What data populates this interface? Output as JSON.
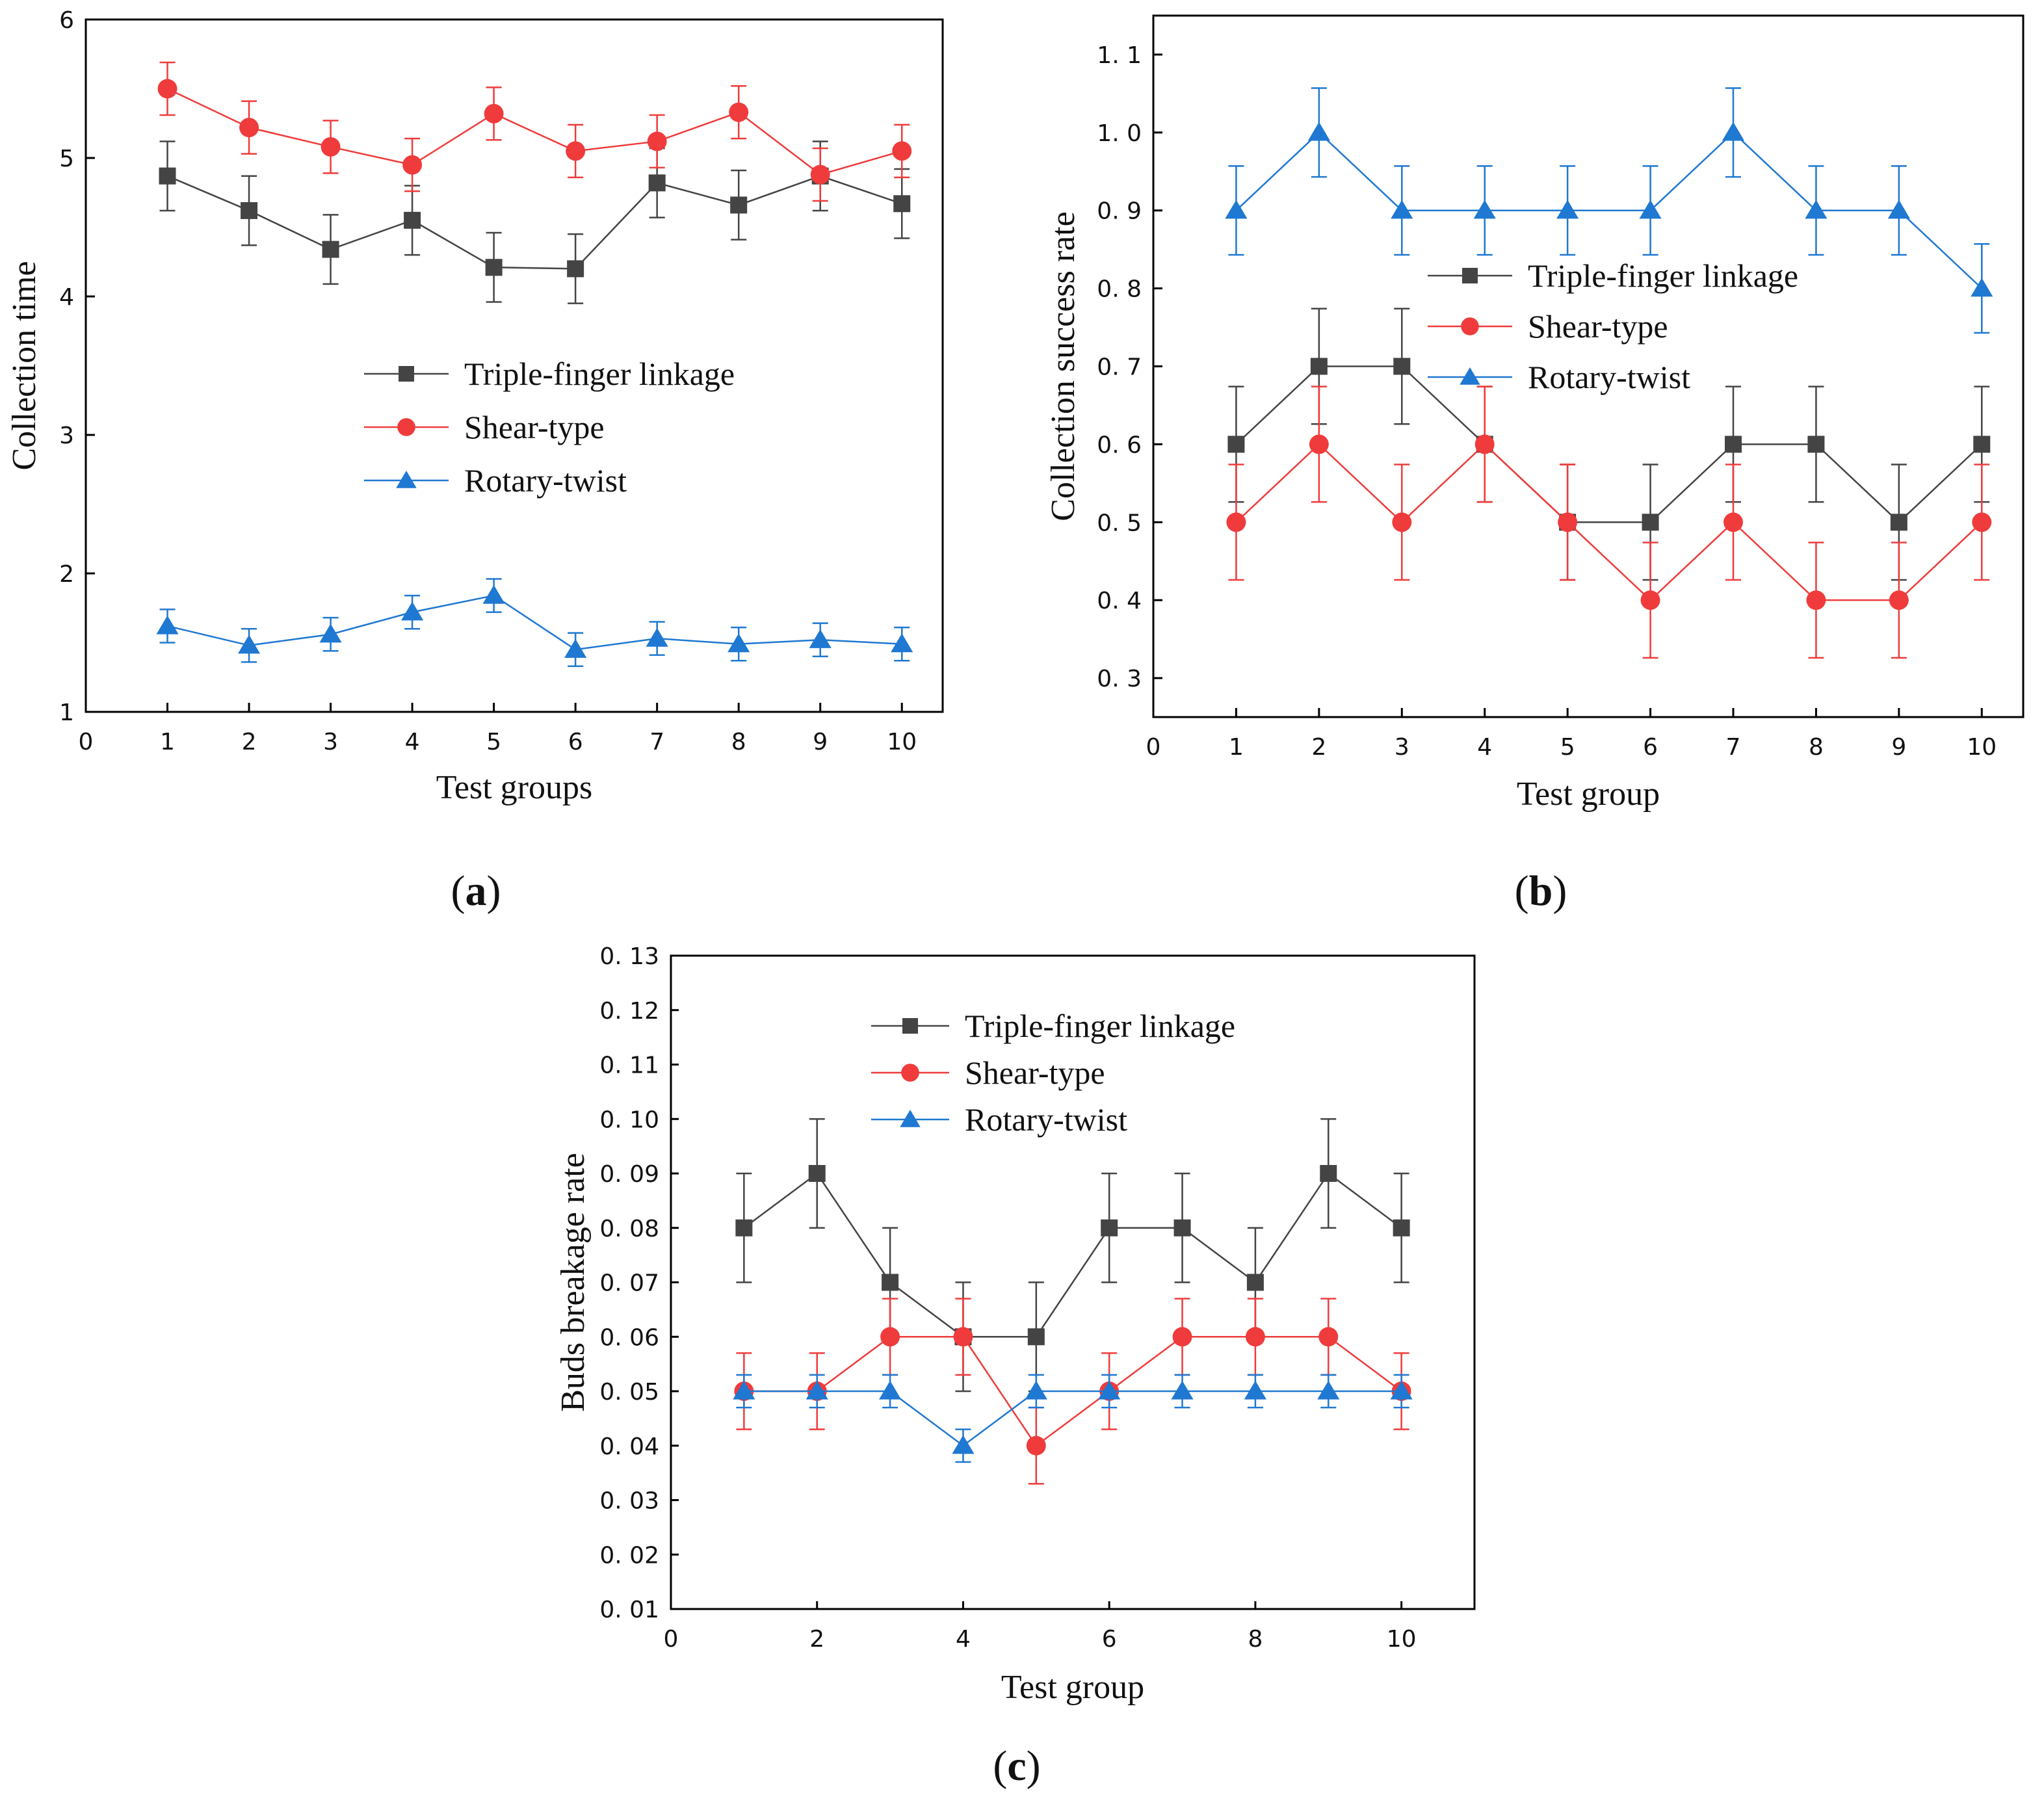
{
  "colors": {
    "triple": "#444444",
    "shear": "#ef3b3b",
    "rotary": "#1f78d1"
  },
  "chart_data": [
    {
      "id": "a",
      "type": "line",
      "panel_label": "a",
      "xlabel": "Test groups",
      "ylabel": "Collection time",
      "xlim": [
        0,
        10.5
      ],
      "ylim": [
        1,
        6
      ],
      "xticks": [
        0,
        1,
        2,
        3,
        4,
        5,
        6,
        7,
        8,
        9,
        10
      ],
      "yticks": [
        1,
        2,
        3,
        4,
        5,
        6
      ],
      "ytick_labels": [
        "1",
        "2",
        "3",
        "4",
        "5",
        "6"
      ],
      "legend_position": "center",
      "grid": false,
      "x": [
        1,
        2,
        3,
        4,
        5,
        6,
        7,
        8,
        9,
        10
      ],
      "series": [
        {
          "name": "Triple-finger linkage",
          "key": "triple",
          "marker": "square",
          "values": [
            4.87,
            4.62,
            4.34,
            4.55,
            4.21,
            4.2,
            4.82,
            4.66,
            4.87,
            4.67
          ],
          "error": 0.25
        },
        {
          "name": "Shear-type",
          "key": "shear",
          "marker": "circle",
          "values": [
            5.5,
            5.22,
            5.08,
            4.95,
            5.32,
            5.05,
            5.12,
            5.33,
            4.88,
            5.05
          ],
          "error": 0.19
        },
        {
          "name": "Rotary-twist",
          "key": "rotary",
          "marker": "triangle",
          "values": [
            1.62,
            1.48,
            1.56,
            1.72,
            1.84,
            1.45,
            1.53,
            1.49,
            1.52,
            1.49
          ],
          "error": 0.12
        }
      ]
    },
    {
      "id": "b",
      "type": "line",
      "panel_label": "b",
      "xlabel": "Test group",
      "ylabel": "Collection success rate",
      "xlim": [
        0,
        10.5
      ],
      "ylim": [
        0.25,
        1.15
      ],
      "xticks": [
        0,
        1,
        2,
        3,
        4,
        5,
        6,
        7,
        8,
        9,
        10
      ],
      "yticks": [
        0.3,
        0.4,
        0.5,
        0.6,
        0.7,
        0.8,
        0.9,
        1.0,
        1.1
      ],
      "ytick_labels": [
        "0. 3",
        "0. 4",
        "0. 5",
        "0. 6",
        "0. 7",
        "0. 8",
        "0. 9",
        "1. 0",
        "1. 1"
      ],
      "legend_position": "upper-center",
      "grid": false,
      "x": [
        1,
        2,
        3,
        4,
        5,
        6,
        7,
        8,
        9,
        10
      ],
      "series": [
        {
          "name": "Triple-finger linkage",
          "key": "triple",
          "marker": "square",
          "values": [
            0.6,
            0.7,
            0.7,
            0.6,
            0.5,
            0.5,
            0.6,
            0.6,
            0.5,
            0.6
          ],
          "error": 0.074
        },
        {
          "name": "Shear-type",
          "key": "shear",
          "marker": "circle",
          "values": [
            0.5,
            0.6,
            0.5,
            0.6,
            0.5,
            0.4,
            0.5,
            0.4,
            0.4,
            0.5
          ],
          "error": 0.074
        },
        {
          "name": "Rotary-twist",
          "key": "rotary",
          "marker": "triangle",
          "values": [
            0.9,
            1.0,
            0.9,
            0.9,
            0.9,
            0.9,
            1.0,
            0.9,
            0.9,
            0.8
          ],
          "error": 0.057
        }
      ]
    },
    {
      "id": "c",
      "type": "line",
      "panel_label": "c",
      "xlabel": "Test group",
      "ylabel": "Buds breakage rate",
      "xlim": [
        0,
        11
      ],
      "ylim": [
        0.01,
        0.13
      ],
      "xticks": [
        0,
        2,
        4,
        6,
        8,
        10
      ],
      "yticks": [
        0.01,
        0.02,
        0.03,
        0.04,
        0.05,
        0.06,
        0.07,
        0.08,
        0.09,
        0.1,
        0.11,
        0.12,
        0.13
      ],
      "ytick_labels": [
        "0. 01",
        "0. 02",
        "0. 03",
        "0. 04",
        "0. 05",
        "0. 06",
        "0. 07",
        "0. 08",
        "0. 09",
        "0. 10",
        "0. 11",
        "0. 12",
        "0. 13"
      ],
      "legend_position": "top-left",
      "grid": false,
      "x": [
        1,
        2,
        3,
        4,
        5,
        6,
        7,
        8,
        9,
        10
      ],
      "series": [
        {
          "name": "Triple-finger linkage",
          "key": "triple",
          "marker": "square",
          "values": [
            0.08,
            0.09,
            0.07,
            0.06,
            0.06,
            0.08,
            0.08,
            0.07,
            0.09,
            0.08
          ],
          "error": 0.01
        },
        {
          "name": "Shear-type",
          "key": "shear",
          "marker": "circle",
          "values": [
            0.05,
            0.05,
            0.06,
            0.06,
            0.04,
            0.05,
            0.06,
            0.06,
            0.06,
            0.05
          ],
          "error": 0.007
        },
        {
          "name": "Rotary-twist",
          "key": "rotary",
          "marker": "triangle",
          "values": [
            0.05,
            0.05,
            0.05,
            0.04,
            0.05,
            0.05,
            0.05,
            0.05,
            0.05,
            0.05
          ],
          "error": 0.003
        }
      ]
    }
  ]
}
